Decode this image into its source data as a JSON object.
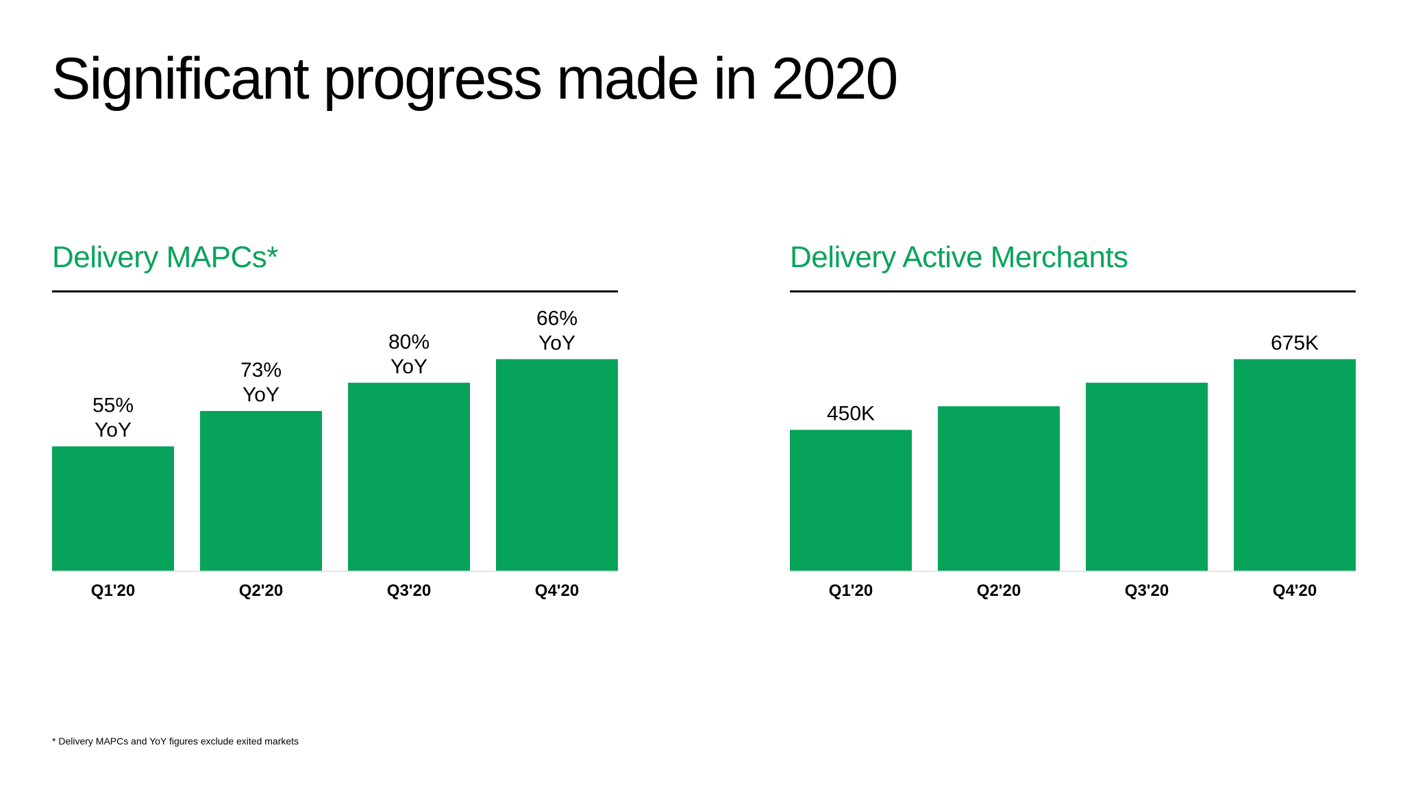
{
  "slide": {
    "title": "Significant progress made in 2020",
    "footnote": "* Delivery MAPCs and YoY figures exclude exited markets"
  },
  "colors": {
    "accent": "#08A35A",
    "text": "#000000",
    "background": "#FFFFFF"
  },
  "chart_data": [
    {
      "type": "bar",
      "title": "Delivery MAPCs*",
      "categories": [
        "Q1'20",
        "Q2'20",
        "Q3'20",
        "Q4'20"
      ],
      "values": [
        53,
        68,
        80,
        90
      ],
      "value_note": "relative bar heights estimated, no y-axis shown",
      "data_labels": [
        [
          "55%",
          "YoY"
        ],
        [
          "73%",
          "YoY"
        ],
        [
          "80%",
          "YoY"
        ],
        [
          "66%",
          "YoY"
        ]
      ],
      "ylim": [
        0,
        100
      ],
      "grid": false,
      "legend": "none",
      "color": "#08A35A"
    },
    {
      "type": "bar",
      "title": "Delivery Active Merchants",
      "categories": [
        "Q1'20",
        "Q2'20",
        "Q3'20",
        "Q4'20"
      ],
      "values": [
        450,
        525,
        600,
        675
      ],
      "value_unit": "K",
      "data_labels": [
        [
          "450K"
        ],
        [],
        [],
        [
          "675K"
        ]
      ],
      "ylim": [
        0,
        750
      ],
      "grid": false,
      "legend": "none",
      "color": "#08A35A"
    }
  ]
}
